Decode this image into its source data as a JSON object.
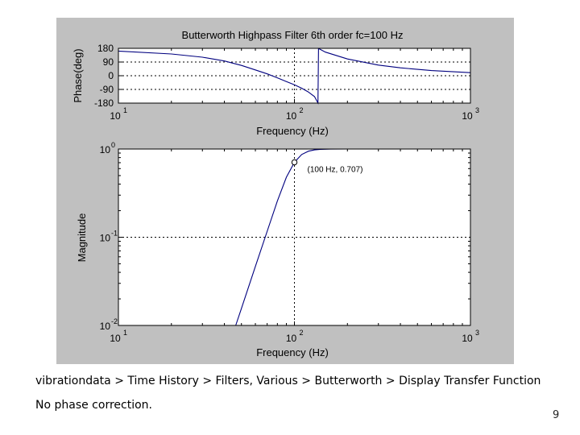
{
  "slide": {
    "caption_line1": "vibrationdata > Time History > Filters, Various > Butterworth > Display Transfer Function",
    "caption_line2": "No phase correction.",
    "page_number": "9"
  },
  "colors": {
    "figure_bg": "#c0c0c0",
    "axes_bg": "#ffffff",
    "line": "#00007f",
    "grid": "#000000"
  },
  "chart_data": [
    {
      "type": "line",
      "title": "Butterworth Highpass Filter 6th order fc=100 Hz",
      "xlabel": "Frequency (Hz)",
      "ylabel": "Phase(deg)",
      "xscale": "log",
      "xlim": [
        10,
        1000
      ],
      "ylim": [
        -180,
        180
      ],
      "x_ticks": [
        {
          "value": 10,
          "base": "10",
          "exp": "1"
        },
        {
          "value": 100,
          "base": "10",
          "exp": "2"
        },
        {
          "value": 1000,
          "base": "10",
          "exp": "3"
        }
      ],
      "y_ticks": [
        {
          "value": 180,
          "label": "180"
        },
        {
          "value": 90,
          "label": "90"
        },
        {
          "value": 0,
          "label": "0"
        },
        {
          "value": -90,
          "label": "-90"
        },
        {
          "value": -180,
          "label": "-180"
        }
      ],
      "grid": true,
      "series": [
        {
          "x": [
            10,
            20,
            30,
            40,
            50,
            60,
            70,
            80,
            90,
            100,
            110,
            120,
            130,
            136,
            137,
            150,
            200,
            300,
            400,
            600,
            1000
          ],
          "values": [
            162,
            143,
            122,
            97,
            68,
            38,
            12,
            -14,
            -38,
            -60,
            -82,
            -107,
            -137,
            -179,
            179,
            155,
            110,
            70,
            52,
            34,
            20
          ]
        }
      ]
    },
    {
      "type": "line",
      "xlabel": "Frequency (Hz)",
      "ylabel": "Magnitude",
      "xscale": "log",
      "yscale": "log",
      "xlim": [
        10,
        1000
      ],
      "ylim": [
        0.01,
        1
      ],
      "x_ticks": [
        {
          "value": 10,
          "base": "10",
          "exp": "1"
        },
        {
          "value": 100,
          "base": "10",
          "exp": "2"
        },
        {
          "value": 1000,
          "base": "10",
          "exp": "3"
        }
      ],
      "y_ticks": [
        {
          "value": 1,
          "base": "10",
          "exp": "0"
        },
        {
          "value": 0.1,
          "base": "10",
          "exp": "-1"
        },
        {
          "value": 0.01,
          "base": "10",
          "exp": "-2"
        }
      ],
      "grid": true,
      "series": [
        {
          "x": [
            46.4,
            50,
            60,
            70,
            80,
            90,
            100,
            110,
            120,
            130,
            140,
            160,
            200,
            300,
            500,
            1000
          ],
          "values": [
            0.01,
            0.0156,
            0.0466,
            0.117,
            0.257,
            0.479,
            0.707,
            0.867,
            0.944,
            0.977,
            0.99,
            0.998,
            1.0,
            1.0,
            1.0,
            1.0
          ]
        }
      ],
      "annotation": {
        "x": 100,
        "y": 0.707,
        "text": "(100 Hz, 0.707)"
      }
    }
  ]
}
